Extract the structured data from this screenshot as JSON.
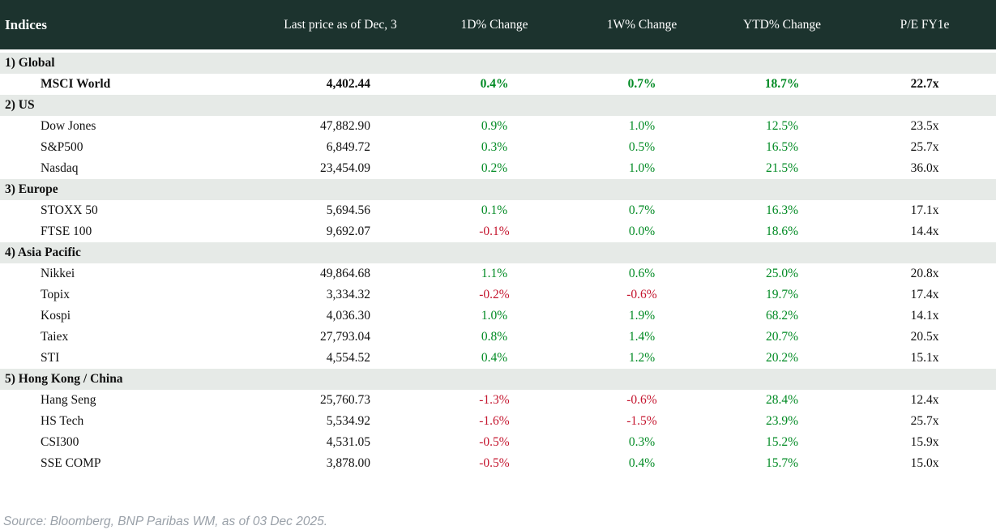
{
  "table": {
    "title": "Indices",
    "columns": [
      "Last price as of Dec, 3",
      "1D% Change",
      "1W% Change",
      "YTD% Change",
      "P/E FY1e"
    ],
    "sections": [
      {
        "label": "1) Global",
        "rows": [
          {
            "name": "MSCI World",
            "price": "4,402.44",
            "chg_1d": "0.4%",
            "chg_1w": "0.7%",
            "chg_ytd": "18.7%",
            "pe": "22.7x",
            "emphasis": true
          }
        ]
      },
      {
        "label": "2) US",
        "rows": [
          {
            "name": "Dow Jones",
            "price": "47,882.90",
            "chg_1d": "0.9%",
            "chg_1w": "1.0%",
            "chg_ytd": "12.5%",
            "pe": "23.5x"
          },
          {
            "name": "S&P500",
            "price": "6,849.72",
            "chg_1d": "0.3%",
            "chg_1w": "0.5%",
            "chg_ytd": "16.5%",
            "pe": "25.7x"
          },
          {
            "name": "Nasdaq",
            "price": "23,454.09",
            "chg_1d": "0.2%",
            "chg_1w": "1.0%",
            "chg_ytd": "21.5%",
            "pe": "36.0x"
          }
        ]
      },
      {
        "label": "3) Europe",
        "rows": [
          {
            "name": "STOXX 50",
            "price": "5,694.56",
            "chg_1d": "0.1%",
            "chg_1w": "0.7%",
            "chg_ytd": "16.3%",
            "pe": "17.1x"
          },
          {
            "name": "FTSE 100",
            "price": "9,692.07",
            "chg_1d": "-0.1%",
            "chg_1w": "0.0%",
            "chg_ytd": "18.6%",
            "pe": "14.4x"
          }
        ]
      },
      {
        "label": "4) Asia Pacific",
        "rows": [
          {
            "name": "Nikkei",
            "price": "49,864.68",
            "chg_1d": "1.1%",
            "chg_1w": "0.6%",
            "chg_ytd": "25.0%",
            "pe": "20.8x"
          },
          {
            "name": "Topix",
            "price": "3,334.32",
            "chg_1d": "-0.2%",
            "chg_1w": "-0.6%",
            "chg_ytd": "19.7%",
            "pe": "17.4x"
          },
          {
            "name": "Kospi",
            "price": "4,036.30",
            "chg_1d": "1.0%",
            "chg_1w": "1.9%",
            "chg_ytd": "68.2%",
            "pe": "14.1x"
          },
          {
            "name": "Taiex",
            "price": "27,793.04",
            "chg_1d": "0.8%",
            "chg_1w": "1.4%",
            "chg_ytd": "20.7%",
            "pe": "20.5x"
          },
          {
            "name": "STI",
            "price": "4,554.52",
            "chg_1d": "0.4%",
            "chg_1w": "1.2%",
            "chg_ytd": "20.2%",
            "pe": "15.1x"
          }
        ]
      },
      {
        "label": "5) Hong Kong / China",
        "rows": [
          {
            "name": "Hang Seng",
            "price": "25,760.73",
            "chg_1d": "-1.3%",
            "chg_1w": "-0.6%",
            "chg_ytd": "28.4%",
            "pe": "12.4x"
          },
          {
            "name": "HS Tech",
            "price": "5,534.92",
            "chg_1d": "-1.6%",
            "chg_1w": "-1.5%",
            "chg_ytd": "23.9%",
            "pe": "25.7x"
          },
          {
            "name": "CSI300",
            "price": "4,531.05",
            "chg_1d": "-0.5%",
            "chg_1w": "0.3%",
            "chg_ytd": "15.2%",
            "pe": "15.9x"
          },
          {
            "name": "SSE COMP",
            "price": "3,878.00",
            "chg_1d": "-0.5%",
            "chg_1w": "0.4%",
            "chg_ytd": "15.7%",
            "pe": "15.0x"
          }
        ]
      }
    ]
  },
  "footer": {
    "source": "Source: Bloomberg, BNP Paribas WM, as of 03 Dec 2025."
  },
  "colors": {
    "header_bg": "#1c332e",
    "header_text": "#ffffff",
    "section_bg": "#e6eae7",
    "positive": "#008a23",
    "negative": "#c4142d",
    "source_text": "#9aa1a9"
  },
  "chart_data": {
    "type": "table",
    "title": "Indices",
    "columns": [
      "Indices",
      "Last price as of Dec, 3",
      "1D% Change",
      "1W% Change",
      "YTD% Change",
      "P/E FY1e"
    ],
    "rows": [
      [
        "1) Global",
        "",
        "",
        "",
        "",
        ""
      ],
      [
        "MSCI World",
        4402.44,
        0.4,
        0.7,
        18.7,
        22.7
      ],
      [
        "2) US",
        "",
        "",
        "",
        "",
        ""
      ],
      [
        "Dow Jones",
        47882.9,
        0.9,
        1.0,
        12.5,
        23.5
      ],
      [
        "S&P500",
        6849.72,
        0.3,
        0.5,
        16.5,
        25.7
      ],
      [
        "Nasdaq",
        23454.09,
        0.2,
        1.0,
        21.5,
        36.0
      ],
      [
        "3) Europe",
        "",
        "",
        "",
        "",
        ""
      ],
      [
        "STOXX 50",
        5694.56,
        0.1,
        0.7,
        16.3,
        17.1
      ],
      [
        "FTSE 100",
        9692.07,
        -0.1,
        0.0,
        18.6,
        14.4
      ],
      [
        "4) Asia Pacific",
        "",
        "",
        "",
        "",
        ""
      ],
      [
        "Nikkei",
        49864.68,
        1.1,
        0.6,
        25.0,
        20.8
      ],
      [
        "Topix",
        3334.32,
        -0.2,
        -0.6,
        19.7,
        17.4
      ],
      [
        "Kospi",
        4036.3,
        1.0,
        1.9,
        68.2,
        14.1
      ],
      [
        "Taiex",
        27793.04,
        0.8,
        1.4,
        20.7,
        20.5
      ],
      [
        "STI",
        4554.52,
        0.4,
        1.2,
        20.2,
        15.1
      ],
      [
        "5) Hong Kong / China",
        "",
        "",
        "",
        "",
        ""
      ],
      [
        "Hang Seng",
        25760.73,
        -1.3,
        -0.6,
        28.4,
        12.4
      ],
      [
        "HS Tech",
        5534.92,
        -1.6,
        -1.5,
        23.9,
        25.7
      ],
      [
        "CSI300",
        4531.05,
        -0.5,
        0.3,
        15.2,
        15.9
      ],
      [
        "SSE COMP",
        3878.0,
        -0.5,
        0.4,
        15.7,
        15.0
      ]
    ],
    "notes": "Percent change cells colored green when >= 0, red when negative. Source line: Source: Bloomberg, BNP Paribas WM, as of 03 Dec 2025."
  }
}
